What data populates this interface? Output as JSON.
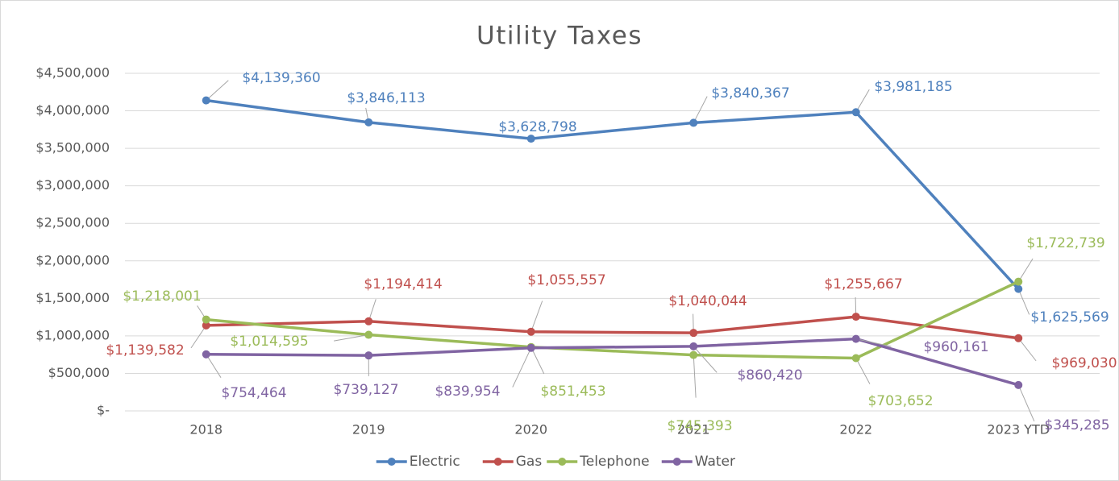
{
  "chart_data": {
    "type": "line",
    "title": "Utility Taxes",
    "categories": [
      "2018",
      "2019",
      "2020",
      "2021",
      "2022",
      "2023 YTD"
    ],
    "series": [
      {
        "name": "Electric",
        "color": "#4f81bd",
        "values": [
          4139360,
          3846113,
          3628798,
          3840367,
          3981185,
          1625569
        ],
        "value_labels": [
          "$4,139,360",
          "$3,846,113",
          "$3,628,798",
          "$3,840,367",
          "$3,981,185",
          "$1,625,569"
        ]
      },
      {
        "name": "Gas",
        "color": "#c0504d",
        "values": [
          1139582,
          1194414,
          1055557,
          1040044,
          1255667,
          969030
        ],
        "value_labels": [
          "$1,139,582",
          "$1,194,414",
          "$1,055,557",
          "$1,040,044",
          "$1,255,667",
          "$969,030"
        ]
      },
      {
        "name": "Telephone",
        "color": "#9bbb59",
        "values": [
          1218001,
          1014595,
          851453,
          745393,
          703652,
          1722739
        ],
        "value_labels": [
          "$1,218,001",
          "$1,014,595",
          "$851,453",
          "$745,393",
          "$703,652",
          "$1,722,739"
        ]
      },
      {
        "name": "Water",
        "color": "#8064a2",
        "values": [
          754464,
          739127,
          839954,
          860420,
          960161,
          345285
        ],
        "value_labels": [
          "$754,464",
          "$739,127",
          "$839,954",
          "$860,420",
          "$960,161",
          "$345,285"
        ]
      }
    ],
    "ylim": [
      0,
      4500000
    ],
    "yticks": [
      {
        "value": 0,
        "label": "$-"
      },
      {
        "value": 500000,
        "label": "$500,000"
      },
      {
        "value": 1000000,
        "label": "$1,000,000"
      },
      {
        "value": 1500000,
        "label": "$1,500,000"
      },
      {
        "value": 2000000,
        "label": "$2,000,000"
      },
      {
        "value": 2500000,
        "label": "$2,500,000"
      },
      {
        "value": 3000000,
        "label": "$3,000,000"
      },
      {
        "value": 3500000,
        "label": "$3,500,000"
      },
      {
        "value": 4000000,
        "label": "$4,000,000"
      },
      {
        "value": 4500000,
        "label": "$4,500,000"
      }
    ],
    "grid": true,
    "legend": "bottom"
  }
}
